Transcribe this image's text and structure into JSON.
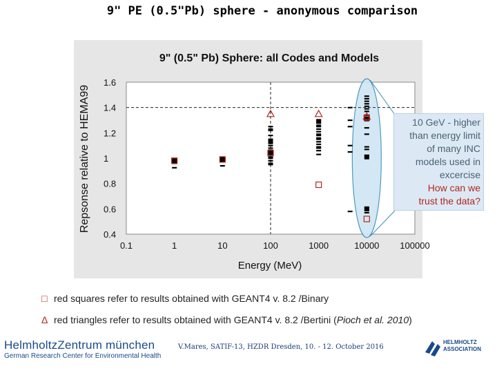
{
  "slide_title": "9\" PE (0.5\"Pb) sphere - anonymous comparison",
  "callout_lines": [
    {
      "text": "10 GeV - higher",
      "tone": "gray"
    },
    {
      "text": "than energy limit",
      "tone": "gray"
    },
    {
      "text": "of many INC",
      "tone": "gray"
    },
    {
      "text": "models used in",
      "tone": "gray"
    },
    {
      "text": "excercise",
      "tone": "gray"
    },
    {
      "text": "How can we",
      "tone": "red"
    },
    {
      "text": "trust the data?",
      "tone": "red"
    }
  ],
  "legend_notes": {
    "squares": {
      "symbol": "□",
      "text": "red squares refer to results obtained with GEANT4 v. 8.2 /Binary"
    },
    "triangles": {
      "symbol": "Δ",
      "text": "red triangles refer to results obtained with GEANT4 v. 8.2 /Bertini  (",
      "cite": "Pioch et al. 2010",
      "suffix": ")"
    }
  },
  "footer": {
    "org_line1": "HelmholtzZentrum münchen",
    "org_line2": "German Research Center for Environmental Health",
    "event": "V.Mares, SATIF-13, HZDR Dresden, 10. - 12. October 2016",
    "partner_line1": "HELMHOLTZ",
    "partner_line2": "ASSOCIATION"
  },
  "colors": {
    "red": "#b3261e",
    "black": "#000000",
    "panel": "#e6e6e6",
    "callout_bg": "#dce9f4",
    "highlight": "#cfe6f3"
  },
  "chart_data": {
    "type": "scatter",
    "title": "9\" (0.5\" Pb) Sphere: all Codes and Models",
    "xlabel": "Energy  (MeV)",
    "ylabel": "Repsonse relative to HEMA99",
    "xscale": "log",
    "xlim": [
      0.1,
      100000
    ],
    "ylim": [
      0.4,
      1.6
    ],
    "x_ticks": [
      "0.1",
      "1",
      "10",
      "100",
      "1000",
      "10000",
      "100000"
    ],
    "y_ticks": [
      "0.4",
      "0.6",
      "0.8",
      "1",
      "1.2",
      "1.4",
      "1.6"
    ],
    "reference_line_y": 1.4,
    "reference_line_x": 100,
    "highlight_x": 10000,
    "series": [
      {
        "marker": "black-bar",
        "points": [
          [
            1,
            0.985
          ],
          [
            1,
            0.97
          ],
          [
            1,
            0.96
          ],
          [
            1,
            0.925
          ],
          [
            10,
            0.995
          ],
          [
            10,
            0.985
          ],
          [
            10,
            0.975
          ],
          [
            10,
            0.94
          ],
          [
            100,
            1.25
          ],
          [
            100,
            1.23
          ],
          [
            100,
            1.22
          ],
          [
            100,
            1.18
          ],
          [
            100,
            1.15
          ],
          [
            100,
            1.12
          ],
          [
            100,
            1.1
          ],
          [
            100,
            1.08
          ],
          [
            100,
            1.06
          ],
          [
            100,
            1.05
          ],
          [
            100,
            1.03
          ],
          [
            100,
            1.01
          ],
          [
            100,
            1.0
          ],
          [
            100,
            0.98
          ],
          [
            100,
            0.96
          ],
          [
            100,
            0.95
          ],
          [
            1000,
            1.3
          ],
          [
            1000,
            1.28
          ],
          [
            1000,
            1.26
          ],
          [
            1000,
            1.25
          ],
          [
            1000,
            1.23
          ],
          [
            1000,
            1.21
          ],
          [
            1000,
            1.19
          ],
          [
            1000,
            1.18
          ],
          [
            1000,
            1.16
          ],
          [
            1000,
            1.15
          ],
          [
            1000,
            1.13
          ],
          [
            1000,
            1.11
          ],
          [
            1000,
            1.09
          ],
          [
            1000,
            1.08
          ],
          [
            1000,
            1.06
          ],
          [
            1000,
            1.03
          ],
          [
            10000,
            1.49
          ],
          [
            10000,
            1.47
          ],
          [
            10000,
            1.45
          ],
          [
            10000,
            1.43
          ],
          [
            10000,
            1.41
          ],
          [
            10000,
            1.39
          ],
          [
            10000,
            1.37
          ],
          [
            10000,
            1.34
          ],
          [
            10000,
            1.24
          ],
          [
            10000,
            1.19
          ],
          [
            10000,
            1.09
          ],
          [
            10000,
            1.07
          ],
          [
            10000,
            1.02
          ],
          [
            10000,
            0.61
          ],
          [
            10000,
            0.59
          ],
          [
            10000,
            0.57
          ],
          [
            4500,
            1.4
          ],
          [
            4500,
            1.3
          ],
          [
            4500,
            1.25
          ],
          [
            4500,
            1.1
          ],
          [
            4500,
            1.05
          ],
          [
            4500,
            0.58
          ]
        ]
      },
      {
        "marker": "black-square",
        "points": [
          [
            1,
            0.98
          ],
          [
            10,
            0.99
          ],
          [
            100,
            1.05
          ],
          [
            100,
            1.13
          ],
          [
            1000,
            1.29
          ],
          [
            10000,
            1.31
          ],
          [
            10000,
            1.01
          ],
          [
            10000,
            0.6
          ]
        ]
      },
      {
        "marker": "red-square",
        "points": [
          [
            1,
            0.98
          ],
          [
            10,
            0.99
          ],
          [
            100,
            1.04
          ],
          [
            1000,
            0.79
          ],
          [
            10000,
            0.52
          ],
          [
            10000,
            1.32
          ]
        ]
      },
      {
        "marker": "red-triangle",
        "points": [
          [
            100,
            1.35
          ],
          [
            1000,
            1.35
          ],
          [
            10000,
            1.33
          ]
        ]
      }
    ]
  }
}
